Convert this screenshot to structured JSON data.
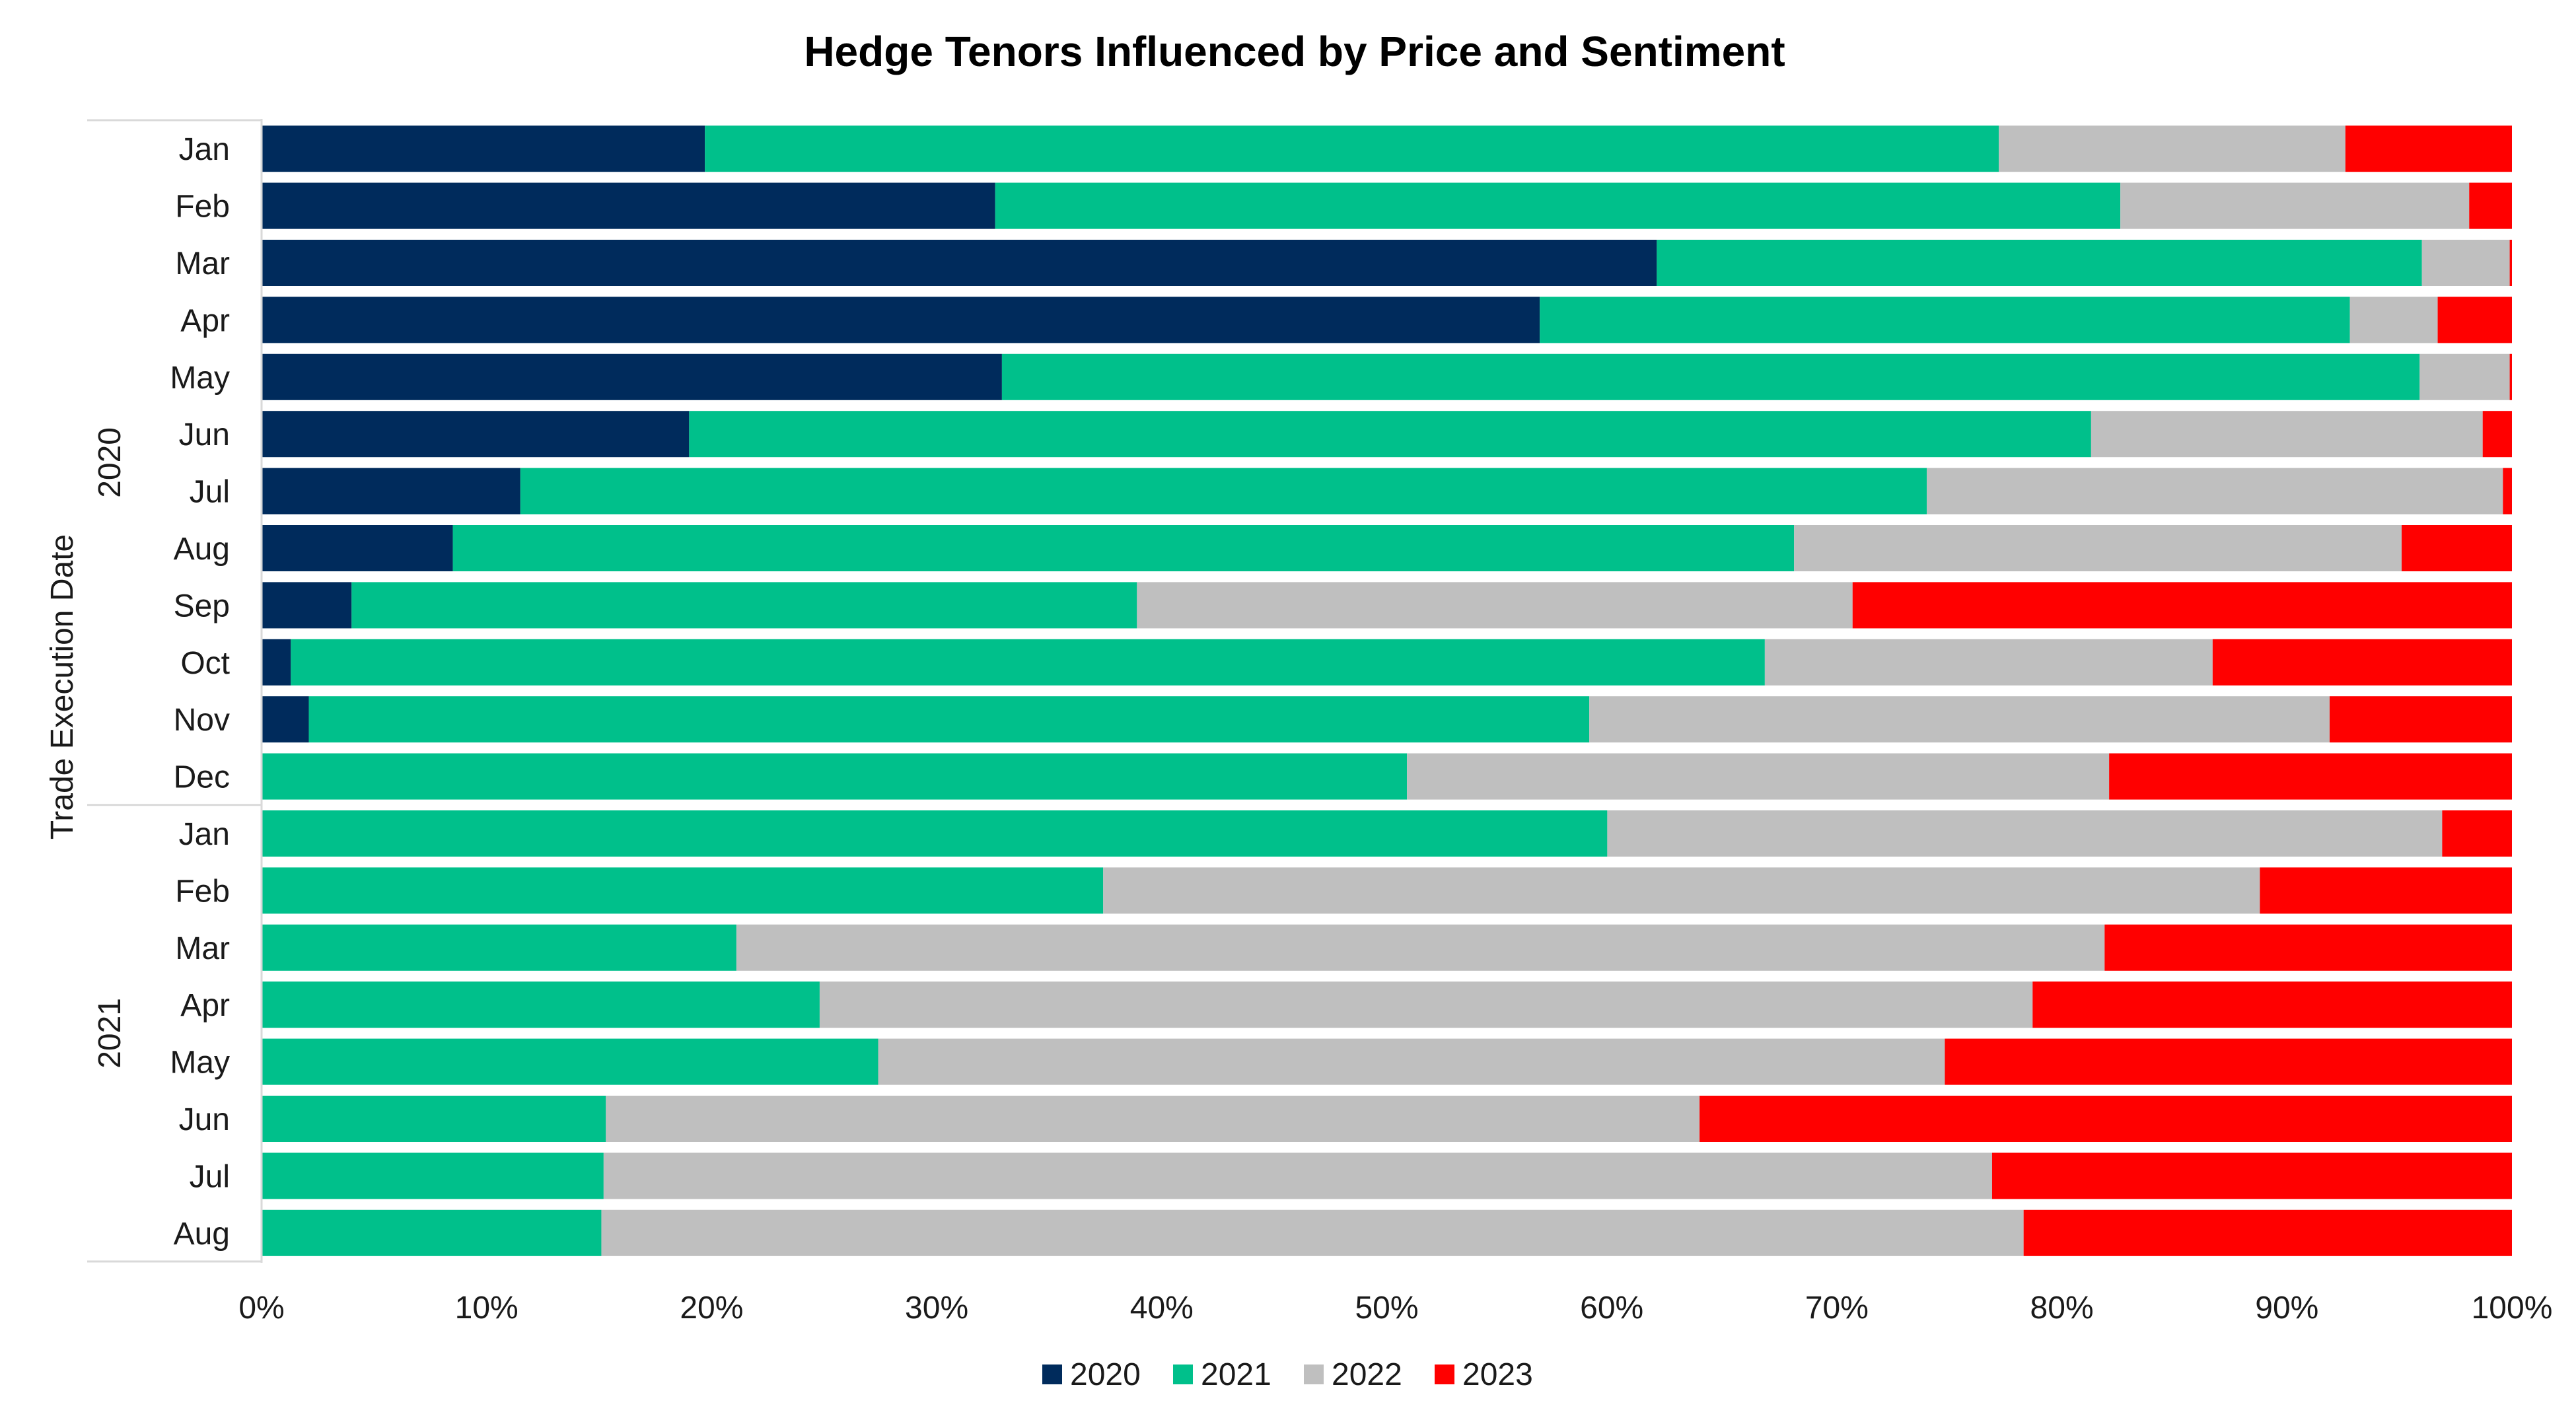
{
  "chart_data": {
    "type": "bar",
    "orientation": "horizontal",
    "stacked": "percent",
    "title": "Hedge Tenors Influenced by Price and Sentiment",
    "ylabel": "Trade Execution Date",
    "xlim": [
      0,
      100
    ],
    "xticks": [
      "0%",
      "10%",
      "20%",
      "30%",
      "40%",
      "50%",
      "60%",
      "70%",
      "80%",
      "90%",
      "100%"
    ],
    "grid": false,
    "legend_position": "bottom",
    "groups": [
      {
        "label": "2020",
        "categories": [
          "Jan",
          "Feb",
          "Mar",
          "Apr",
          "May",
          "Jun",
          "Jul",
          "Aug",
          "Sep",
          "Oct",
          "Nov",
          "Dec"
        ]
      },
      {
        "label": "2021",
        "categories": [
          "Jan",
          "Feb",
          "Mar",
          "Apr",
          "May",
          "Jun",
          "Jul",
          "Aug"
        ]
      }
    ],
    "series": [
      {
        "name": "2020",
        "color": "#002b5c",
        "values": [
          19.7,
          32.6,
          62.0,
          56.8,
          32.9,
          19.0,
          11.5,
          8.5,
          4.0,
          1.3,
          2.1,
          0,
          0,
          0,
          0,
          0,
          0,
          0,
          0,
          0
        ]
      },
      {
        "name": "2021",
        "color": "#00c08b",
        "values": [
          57.5,
          50.0,
          34.0,
          36.0,
          63.0,
          62.3,
          62.5,
          59.6,
          34.9,
          65.5,
          56.9,
          50.9,
          59.8,
          37.4,
          21.1,
          24.8,
          27.4,
          15.3,
          15.2,
          15.1
        ]
      },
      {
        "name": "2022",
        "color": "#bfbfbf",
        "values": [
          15.4,
          15.5,
          3.9,
          3.9,
          4.0,
          17.4,
          25.6,
          27.0,
          31.8,
          19.9,
          32.9,
          31.2,
          37.1,
          51.4,
          60.8,
          53.9,
          47.4,
          48.6,
          61.7,
          63.2
        ]
      },
      {
        "name": "2023",
        "color": "#ff0000",
        "values": [
          7.4,
          1.9,
          0.1,
          3.3,
          0.1,
          1.3,
          0.4,
          4.9,
          29.3,
          13.3,
          8.1,
          17.9,
          3.1,
          11.2,
          18.1,
          21.3,
          25.2,
          36.1,
          23.1,
          21.7
        ]
      }
    ]
  }
}
